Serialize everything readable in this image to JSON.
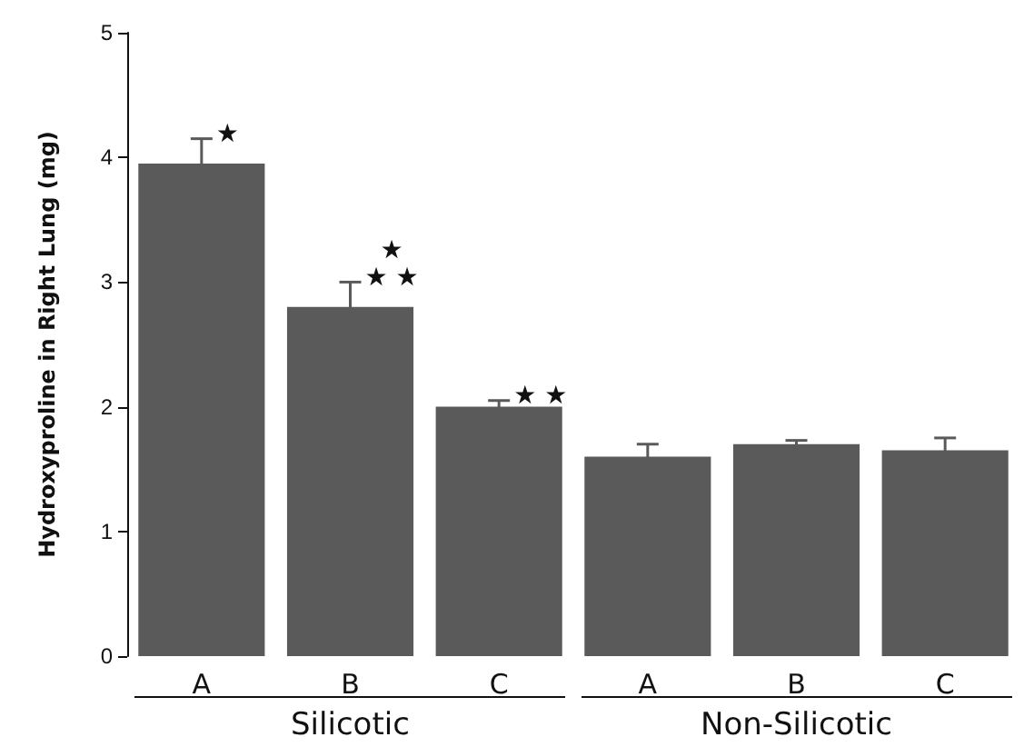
{
  "chart_data": {
    "type": "bar",
    "ylabel": "Hydroxyproline in Right Lung (mg)",
    "categories": [
      "A",
      "B",
      "C",
      "A",
      "B",
      "C"
    ],
    "values": [
      3.95,
      2.8,
      2.0,
      1.6,
      1.7,
      1.65
    ],
    "color": "#5a5a5a",
    "errors": [
      0.2,
      0.2,
      0.05,
      0.1,
      0.03,
      0.1
    ],
    "ylim": [
      0,
      5
    ],
    "yticks": [
      0,
      1,
      2,
      3,
      4,
      5
    ],
    "grid": false,
    "annotations": [
      "★",
      "★\n★ ★",
      "★ ★",
      "Silicotic",
      "Non-Silicotic"
    ]
  }
}
